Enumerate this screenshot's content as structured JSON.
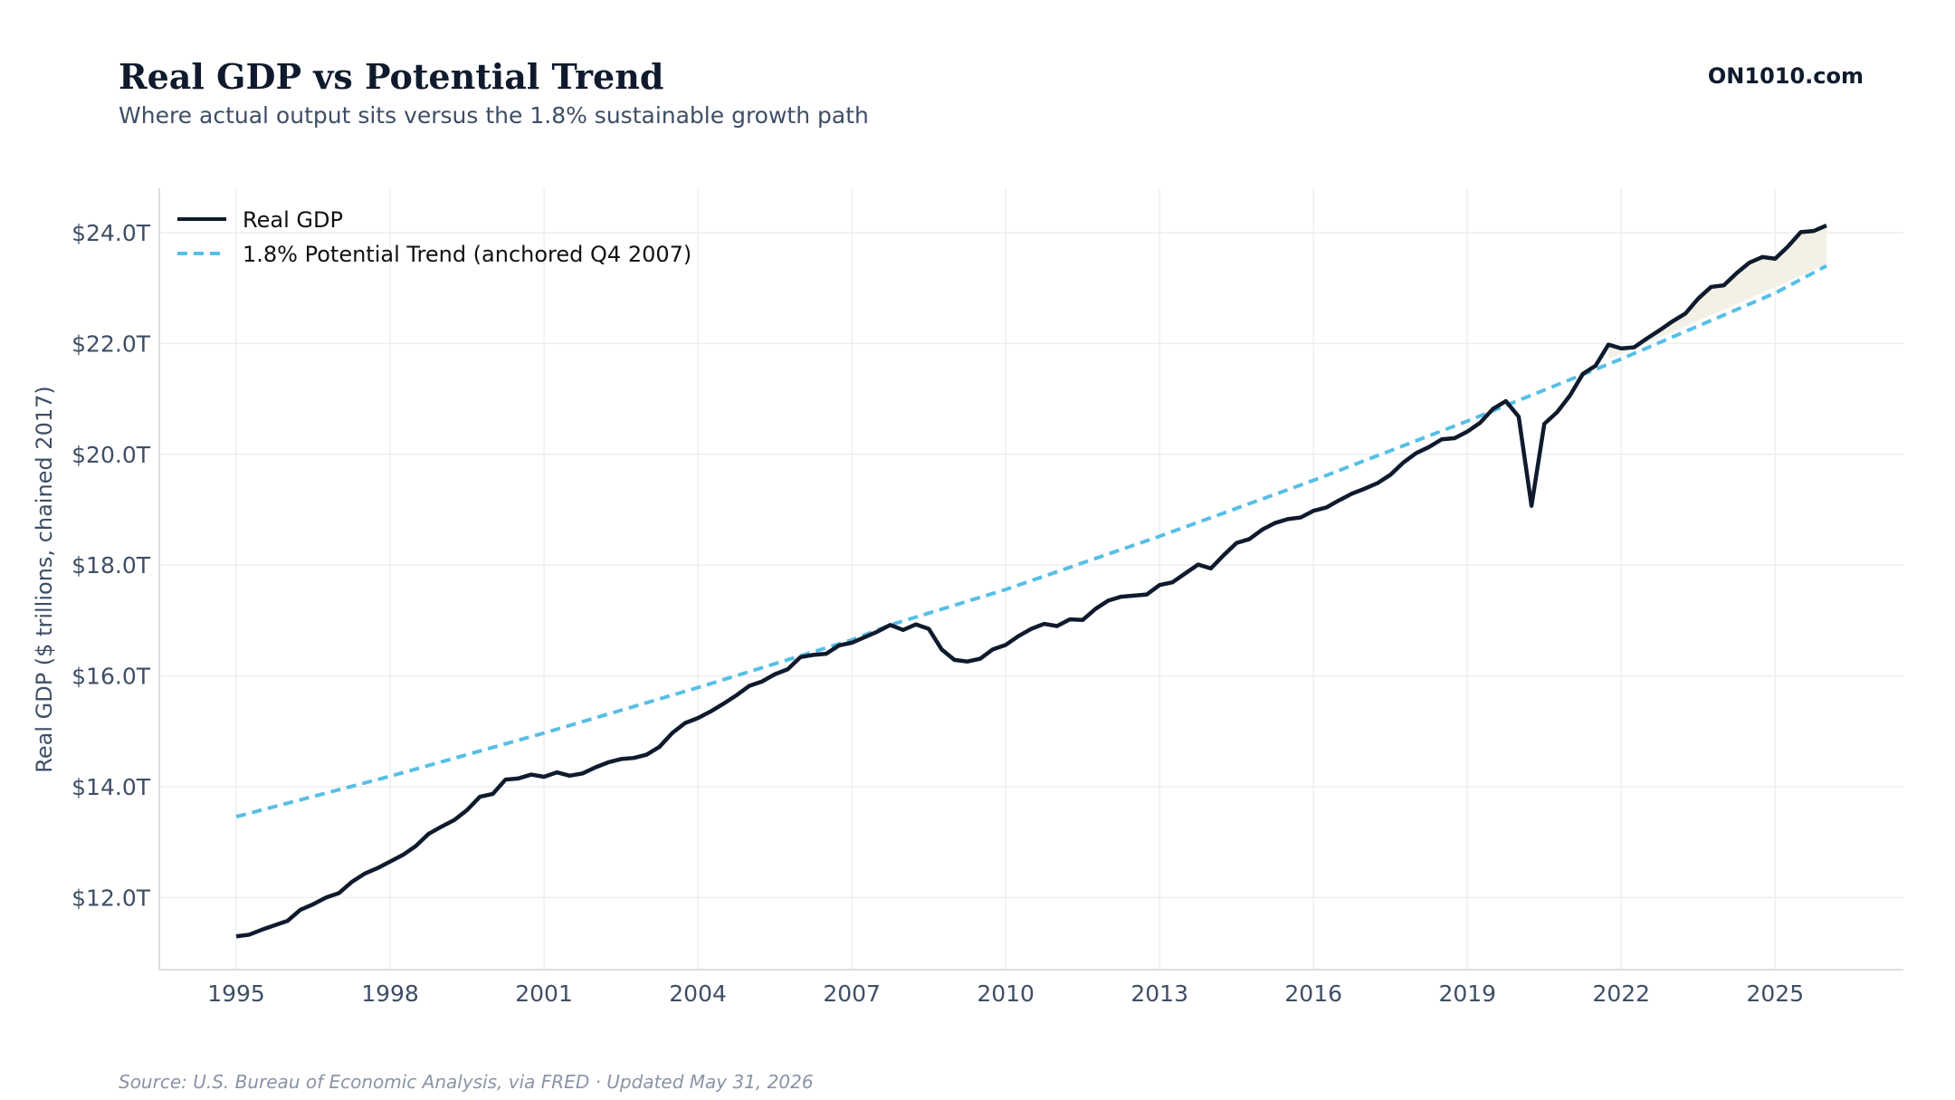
{
  "header": {
    "title": "Real GDP vs Potential Trend",
    "subtitle": "Where actual output sits versus the 1.8% sustainable growth path",
    "brand": "ON1010.com"
  },
  "footer": {
    "source": "Source: U.S. Bureau of Economic Analysis, via FRED · Updated May 31, 2026"
  },
  "colors": {
    "gdp_line": "#0f1b2d",
    "trend_line": "#57bfe6",
    "gap_fill": "#f3f1e6",
    "grid": "#eceef1",
    "axis": "#cfd4db",
    "tick_text": "#3e4e66"
  },
  "chart_data": {
    "type": "line",
    "title": "Real GDP vs Potential Trend",
    "subtitle": "Where actual output sits versus the 1.8% sustainable growth path",
    "xlabel": "",
    "ylabel": "Real GDP ($ trillions, chained 2017)",
    "xlim": [
      1993.5,
      2027.5
    ],
    "ylim": [
      10.7,
      24.8
    ],
    "x_ticks": [
      1995,
      1998,
      2001,
      2004,
      2007,
      2010,
      2013,
      2016,
      2019,
      2022,
      2025
    ],
    "x_tick_labels": [
      "1995",
      "1998",
      "2001",
      "2004",
      "2007",
      "2010",
      "2013",
      "2016",
      "2019",
      "2022",
      "2025"
    ],
    "y_ticks": [
      12,
      14,
      16,
      18,
      20,
      22,
      24
    ],
    "y_tick_labels": [
      "$12.0T",
      "$14.0T",
      "$16.0T",
      "$18.0T",
      "$20.0T",
      "$22.0T",
      "$24.0T"
    ],
    "grid": true,
    "legend_position": "top-left",
    "shading": "area between Real GDP and trend shaded after the 2022 crossover",
    "series": [
      {
        "name": "Real GDP",
        "style": "solid",
        "points": [
          [
            1995.0,
            11.3
          ],
          [
            1995.25,
            11.33
          ],
          [
            1995.5,
            11.42
          ],
          [
            1995.75,
            11.5
          ],
          [
            1996.0,
            11.58
          ],
          [
            1996.25,
            11.78
          ],
          [
            1996.5,
            11.88
          ],
          [
            1996.75,
            12.0
          ],
          [
            1997.0,
            12.08
          ],
          [
            1997.25,
            12.28
          ],
          [
            1997.5,
            12.43
          ],
          [
            1997.75,
            12.53
          ],
          [
            1998.0,
            12.65
          ],
          [
            1998.25,
            12.77
          ],
          [
            1998.5,
            12.93
          ],
          [
            1998.75,
            13.15
          ],
          [
            1999.0,
            13.28
          ],
          [
            1999.25,
            13.4
          ],
          [
            1999.5,
            13.58
          ],
          [
            1999.75,
            13.82
          ],
          [
            2000.0,
            13.87
          ],
          [
            2000.25,
            14.13
          ],
          [
            2000.5,
            14.15
          ],
          [
            2000.75,
            14.22
          ],
          [
            2001.0,
            14.18
          ],
          [
            2001.25,
            14.26
          ],
          [
            2001.5,
            14.2
          ],
          [
            2001.75,
            14.24
          ],
          [
            2002.0,
            14.35
          ],
          [
            2002.25,
            14.44
          ],
          [
            2002.5,
            14.5
          ],
          [
            2002.75,
            14.52
          ],
          [
            2003.0,
            14.58
          ],
          [
            2003.25,
            14.72
          ],
          [
            2003.5,
            14.97
          ],
          [
            2003.75,
            15.15
          ],
          [
            2004.0,
            15.24
          ],
          [
            2004.25,
            15.36
          ],
          [
            2004.5,
            15.5
          ],
          [
            2004.75,
            15.65
          ],
          [
            2005.0,
            15.82
          ],
          [
            2005.25,
            15.9
          ],
          [
            2005.5,
            16.03
          ],
          [
            2005.75,
            16.12
          ],
          [
            2006.0,
            16.34
          ],
          [
            2006.25,
            16.38
          ],
          [
            2006.5,
            16.4
          ],
          [
            2006.75,
            16.55
          ],
          [
            2007.0,
            16.6
          ],
          [
            2007.25,
            16.7
          ],
          [
            2007.5,
            16.8
          ],
          [
            2007.75,
            16.92
          ],
          [
            2008.0,
            16.83
          ],
          [
            2008.25,
            16.93
          ],
          [
            2008.5,
            16.85
          ],
          [
            2008.75,
            16.48
          ],
          [
            2009.0,
            16.29
          ],
          [
            2009.25,
            16.26
          ],
          [
            2009.5,
            16.31
          ],
          [
            2009.75,
            16.48
          ],
          [
            2010.0,
            16.56
          ],
          [
            2010.25,
            16.72
          ],
          [
            2010.5,
            16.85
          ],
          [
            2010.75,
            16.94
          ],
          [
            2011.0,
            16.9
          ],
          [
            2011.25,
            17.02
          ],
          [
            2011.5,
            17.01
          ],
          [
            2011.75,
            17.21
          ],
          [
            2012.0,
            17.36
          ],
          [
            2012.25,
            17.43
          ],
          [
            2012.5,
            17.45
          ],
          [
            2012.75,
            17.47
          ],
          [
            2013.0,
            17.64
          ],
          [
            2013.25,
            17.69
          ],
          [
            2013.5,
            17.85
          ],
          [
            2013.75,
            18.01
          ],
          [
            2014.0,
            17.94
          ],
          [
            2014.25,
            18.18
          ],
          [
            2014.5,
            18.4
          ],
          [
            2014.75,
            18.47
          ],
          [
            2015.0,
            18.64
          ],
          [
            2015.25,
            18.76
          ],
          [
            2015.5,
            18.83
          ],
          [
            2015.75,
            18.86
          ],
          [
            2016.0,
            18.98
          ],
          [
            2016.25,
            19.04
          ],
          [
            2016.5,
            19.17
          ],
          [
            2016.75,
            19.29
          ],
          [
            2017.0,
            19.38
          ],
          [
            2017.25,
            19.48
          ],
          [
            2017.5,
            19.63
          ],
          [
            2017.75,
            19.85
          ],
          [
            2018.0,
            20.02
          ],
          [
            2018.25,
            20.13
          ],
          [
            2018.5,
            20.27
          ],
          [
            2018.75,
            20.29
          ],
          [
            2019.0,
            20.41
          ],
          [
            2019.25,
            20.57
          ],
          [
            2019.5,
            20.82
          ],
          [
            2019.75,
            20.96
          ],
          [
            2020.0,
            20.68
          ],
          [
            2020.25,
            19.07
          ],
          [
            2020.5,
            20.55
          ],
          [
            2020.75,
            20.76
          ],
          [
            2021.0,
            21.06
          ],
          [
            2021.25,
            21.45
          ],
          [
            2021.5,
            21.6
          ],
          [
            2021.75,
            21.98
          ],
          [
            2022.0,
            21.91
          ],
          [
            2022.25,
            21.93
          ],
          [
            2022.5,
            22.09
          ],
          [
            2022.75,
            22.24
          ],
          [
            2023.0,
            22.4
          ],
          [
            2023.25,
            22.54
          ],
          [
            2023.5,
            22.81
          ],
          [
            2023.75,
            23.02
          ],
          [
            2024.0,
            23.05
          ],
          [
            2024.25,
            23.27
          ],
          [
            2024.5,
            23.46
          ],
          [
            2024.75,
            23.56
          ],
          [
            2025.0,
            23.53
          ],
          [
            2025.25,
            23.75
          ],
          [
            2025.5,
            24.01
          ],
          [
            2025.75,
            24.03
          ],
          [
            2026.0,
            24.13
          ]
        ]
      },
      {
        "name": "1.8% Potential Trend (anchored Q4 2007)",
        "style": "dashed",
        "growth_rate": 0.018,
        "anchor_year": 2007.75,
        "anchor_value": 16.92,
        "points": [
          [
            1995.0,
            13.46
          ],
          [
            1998.0,
            14.19
          ],
          [
            2001.0,
            14.97
          ],
          [
            2004.0,
            15.79
          ],
          [
            2007.0,
            16.65
          ],
          [
            2007.75,
            16.92
          ],
          [
            2010.0,
            17.56
          ],
          [
            2013.0,
            18.52
          ],
          [
            2016.0,
            19.53
          ],
          [
            2019.0,
            20.6
          ],
          [
            2022.0,
            21.72
          ],
          [
            2025.0,
            22.91
          ],
          [
            2026.0,
            23.4
          ]
        ]
      }
    ]
  }
}
